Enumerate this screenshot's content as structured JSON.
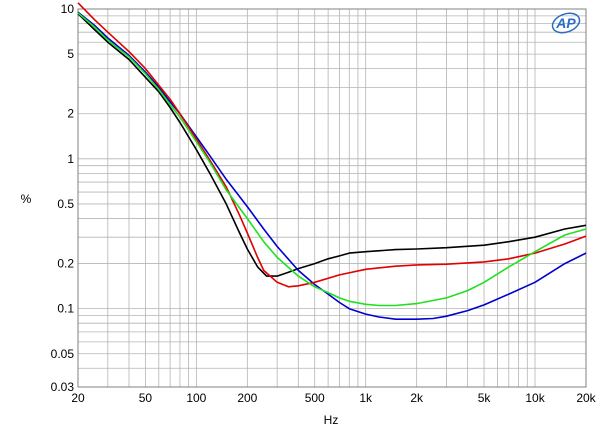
{
  "chart_data": {
    "type": "line",
    "title": "",
    "xlabel": "Hz",
    "ylabel": "%",
    "x_scale": "log",
    "y_scale": "log",
    "xlim": [
      20,
      20000
    ],
    "ylim": [
      0.03,
      10
    ],
    "grid": true,
    "logo_text": "AP",
    "x_ticks": [
      {
        "v": 20,
        "label": "20"
      },
      {
        "v": 50,
        "label": "50"
      },
      {
        "v": 100,
        "label": "100"
      },
      {
        "v": 200,
        "label": "200"
      },
      {
        "v": 500,
        "label": "500"
      },
      {
        "v": 1000,
        "label": "1k"
      },
      {
        "v": 2000,
        "label": "2k"
      },
      {
        "v": 5000,
        "label": "5k"
      },
      {
        "v": 10000,
        "label": "10k"
      },
      {
        "v": 20000,
        "label": "20k"
      }
    ],
    "y_ticks": [
      {
        "v": 10,
        "label": "10"
      },
      {
        "v": 5,
        "label": "5"
      },
      {
        "v": 2,
        "label": "2"
      },
      {
        "v": 1,
        "label": "1"
      },
      {
        "v": 0.5,
        "label": "0.5"
      },
      {
        "v": 0.2,
        "label": "0.2"
      },
      {
        "v": 0.1,
        "label": "0.1"
      },
      {
        "v": 0.05,
        "label": "0.05"
      },
      {
        "v": 0.03,
        "label": "0.03"
      }
    ],
    "series": [
      {
        "color": "#000000",
        "points": [
          [
            20,
            9.3
          ],
          [
            25,
            7.3
          ],
          [
            30,
            6.0
          ],
          [
            40,
            4.6
          ],
          [
            50,
            3.5
          ],
          [
            60,
            2.8
          ],
          [
            70,
            2.2
          ],
          [
            80,
            1.75
          ],
          [
            100,
            1.15
          ],
          [
            120,
            0.8
          ],
          [
            150,
            0.5
          ],
          [
            180,
            0.32
          ],
          [
            200,
            0.25
          ],
          [
            230,
            0.19
          ],
          [
            260,
            0.165
          ],
          [
            300,
            0.165
          ],
          [
            350,
            0.175
          ],
          [
            400,
            0.185
          ],
          [
            500,
            0.2
          ],
          [
            600,
            0.215
          ],
          [
            700,
            0.225
          ],
          [
            800,
            0.235
          ],
          [
            1000,
            0.24
          ],
          [
            1500,
            0.248
          ],
          [
            2000,
            0.25
          ],
          [
            3000,
            0.255
          ],
          [
            5000,
            0.265
          ],
          [
            7000,
            0.28
          ],
          [
            10000,
            0.3
          ],
          [
            15000,
            0.34
          ],
          [
            20000,
            0.36
          ]
        ]
      },
      {
        "color": "#0000d0",
        "points": [
          [
            20,
            9.5
          ],
          [
            25,
            7.8
          ],
          [
            30,
            6.4
          ],
          [
            40,
            4.9
          ],
          [
            50,
            3.8
          ],
          [
            60,
            3.0
          ],
          [
            70,
            2.4
          ],
          [
            80,
            2.0
          ],
          [
            100,
            1.4
          ],
          [
            120,
            1.05
          ],
          [
            150,
            0.73
          ],
          [
            200,
            0.48
          ],
          [
            250,
            0.34
          ],
          [
            300,
            0.26
          ],
          [
            400,
            0.18
          ],
          [
            500,
            0.145
          ],
          [
            600,
            0.125
          ],
          [
            700,
            0.11
          ],
          [
            800,
            0.1
          ],
          [
            1000,
            0.092
          ],
          [
            1200,
            0.088
          ],
          [
            1500,
            0.085
          ],
          [
            2000,
            0.085
          ],
          [
            2500,
            0.086
          ],
          [
            3000,
            0.089
          ],
          [
            4000,
            0.097
          ],
          [
            5000,
            0.106
          ],
          [
            7000,
            0.125
          ],
          [
            10000,
            0.15
          ],
          [
            15000,
            0.2
          ],
          [
            20000,
            0.235
          ]
        ]
      },
      {
        "color": "#e00000",
        "points": [
          [
            20,
            11
          ],
          [
            25,
            8.5
          ],
          [
            30,
            7.0
          ],
          [
            40,
            5.2
          ],
          [
            50,
            4.0
          ],
          [
            60,
            3.1
          ],
          [
            70,
            2.5
          ],
          [
            80,
            2.0
          ],
          [
            100,
            1.35
          ],
          [
            120,
            0.98
          ],
          [
            150,
            0.65
          ],
          [
            180,
            0.42
          ],
          [
            200,
            0.32
          ],
          [
            230,
            0.22
          ],
          [
            250,
            0.18
          ],
          [
            300,
            0.15
          ],
          [
            350,
            0.14
          ],
          [
            400,
            0.142
          ],
          [
            500,
            0.15
          ],
          [
            700,
            0.168
          ],
          [
            1000,
            0.183
          ],
          [
            1500,
            0.192
          ],
          [
            2000,
            0.196
          ],
          [
            3000,
            0.198
          ],
          [
            5000,
            0.205
          ],
          [
            7000,
            0.215
          ],
          [
            10000,
            0.235
          ],
          [
            15000,
            0.27
          ],
          [
            20000,
            0.305
          ]
        ]
      },
      {
        "color": "#20e020",
        "points": [
          [
            20,
            9.4
          ],
          [
            25,
            7.6
          ],
          [
            30,
            6.2
          ],
          [
            40,
            4.8
          ],
          [
            50,
            3.7
          ],
          [
            60,
            2.9
          ],
          [
            70,
            2.3
          ],
          [
            80,
            1.9
          ],
          [
            100,
            1.3
          ],
          [
            120,
            0.95
          ],
          [
            150,
            0.62
          ],
          [
            200,
            0.4
          ],
          [
            250,
            0.28
          ],
          [
            300,
            0.22
          ],
          [
            400,
            0.165
          ],
          [
            500,
            0.14
          ],
          [
            600,
            0.128
          ],
          [
            700,
            0.118
          ],
          [
            800,
            0.112
          ],
          [
            1000,
            0.107
          ],
          [
            1200,
            0.105
          ],
          [
            1500,
            0.105
          ],
          [
            2000,
            0.108
          ],
          [
            3000,
            0.118
          ],
          [
            4000,
            0.132
          ],
          [
            5000,
            0.15
          ],
          [
            7000,
            0.19
          ],
          [
            10000,
            0.24
          ],
          [
            15000,
            0.31
          ],
          [
            20000,
            0.34
          ]
        ]
      }
    ]
  }
}
